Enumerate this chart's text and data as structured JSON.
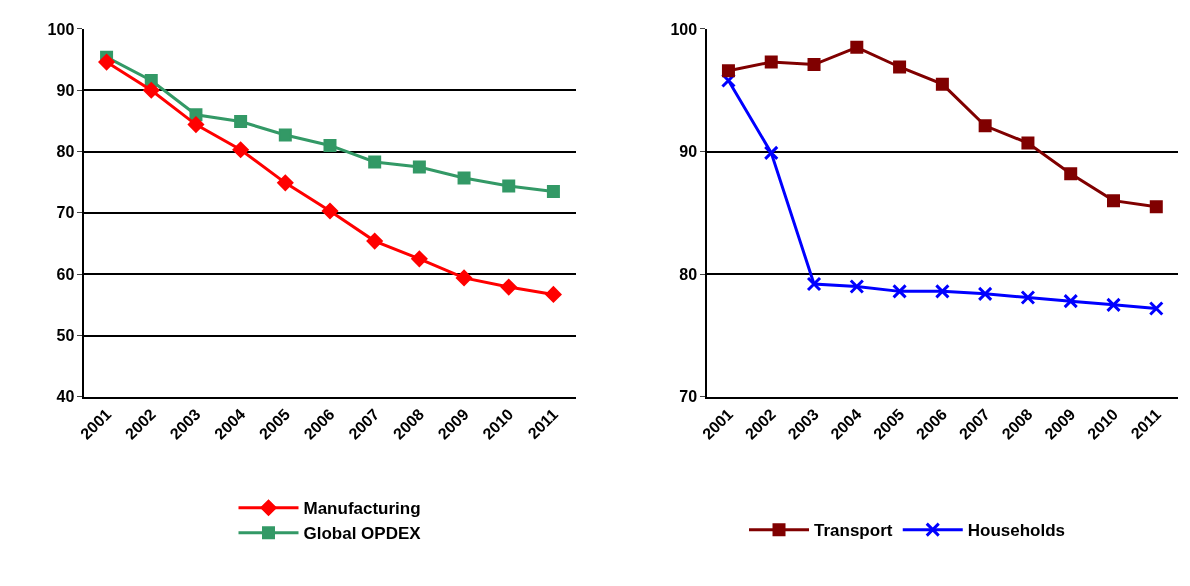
{
  "chart_data": [
    {
      "type": "line",
      "categories": [
        "2001",
        "2002",
        "2003",
        "2004",
        "2005",
        "2006",
        "2007",
        "2008",
        "2009",
        "2010",
        "2011"
      ],
      "ylim": [
        40,
        100
      ],
      "yticks": [
        40,
        50,
        60,
        70,
        80,
        90,
        100
      ],
      "grid": "y",
      "legend": "bottom",
      "series": [
        {
          "name": "Manufacturing",
          "color": "#ff0000",
          "marker": "diamond",
          "values": [
            94.6,
            90.0,
            84.4,
            80.3,
            74.9,
            70.3,
            65.4,
            62.5,
            59.4,
            57.9,
            56.7
          ]
        },
        {
          "name": "Global OPDEX",
          "color": "#339966",
          "marker": "square",
          "values": [
            95.4,
            91.6,
            86.0,
            84.9,
            82.7,
            81.0,
            78.3,
            77.5,
            75.7,
            74.4,
            73.5
          ]
        }
      ]
    },
    {
      "type": "line",
      "categories": [
        "2001",
        "2002",
        "2003",
        "2004",
        "2005",
        "2006",
        "2007",
        "2008",
        "2009",
        "2010",
        "2011"
      ],
      "ylim": [
        70,
        100
      ],
      "yticks": [
        70,
        80,
        90,
        100
      ],
      "grid": "y",
      "legend": "bottom",
      "series": [
        {
          "name": "Transport",
          "color": "#800000",
          "marker": "square",
          "values": [
            96.6,
            97.3,
            97.1,
            98.5,
            96.9,
            95.5,
            92.1,
            90.7,
            88.2,
            86.0,
            85.5
          ]
        },
        {
          "name": "Households",
          "color": "#0000ff",
          "marker": "cross",
          "values": [
            95.8,
            89.9,
            79.2,
            79.0,
            78.6,
            78.6,
            78.4,
            78.1,
            77.8,
            77.5,
            77.2
          ]
        }
      ]
    }
  ]
}
